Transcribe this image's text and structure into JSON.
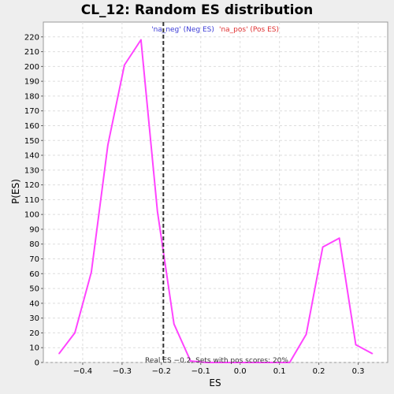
{
  "chart_data": {
    "type": "line",
    "title": "CL_12: Random ES distribution",
    "xlabel": "ES",
    "ylabel": "P(ES)",
    "xlim": [
      -0.5,
      0.375
    ],
    "ylim": [
      0,
      230
    ],
    "x_ticks": [
      -0.4,
      -0.3,
      -0.2,
      -0.1,
      0.0,
      0.1,
      0.2,
      0.3
    ],
    "x_tick_labels": [
      "−0.4",
      "−0.3",
      "−0.2",
      "−0.1",
      "0.0",
      "0.1",
      "0.2",
      "0.3"
    ],
    "y_ticks": [
      0,
      10,
      20,
      30,
      40,
      50,
      60,
      70,
      80,
      90,
      100,
      110,
      120,
      130,
      140,
      150,
      160,
      170,
      180,
      190,
      200,
      210,
      220
    ],
    "grid": true,
    "series": [
      {
        "color": "#ff44ff",
        "x": [
          -0.46,
          -0.42,
          -0.378,
          -0.336,
          -0.294,
          -0.252,
          -0.21,
          -0.168,
          -0.126,
          -0.084,
          -0.042,
          0.0,
          0.042,
          0.084,
          0.126,
          0.168,
          0.21,
          0.252,
          0.294,
          0.336
        ],
        "y": [
          6,
          20,
          61,
          147,
          201,
          218,
          102,
          26,
          1,
          0,
          0,
          0,
          0,
          0,
          0,
          19,
          78,
          84,
          12,
          6
        ]
      }
    ],
    "vline": {
      "x": -0.195,
      "color": "#333333"
    },
    "legend": [
      {
        "label": "'na_neg' (Neg ES)",
        "color": "#3b3bd6"
      },
      {
        "label": "'na_pos' (Pos ES)",
        "color": "#e03030"
      }
    ],
    "legend_position": "top-center",
    "annotation": "Real ES −0.2, Sets with pos scores: 20%"
  }
}
